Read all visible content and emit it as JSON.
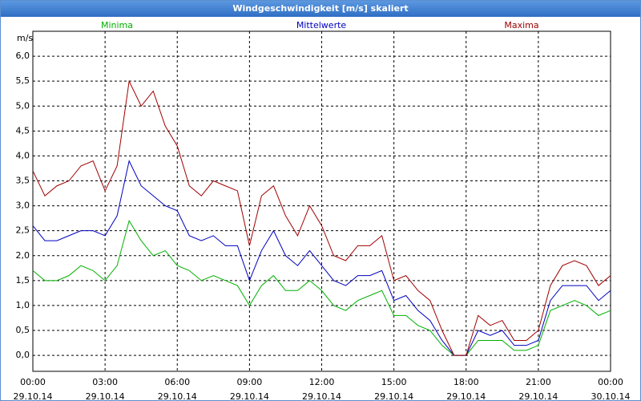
{
  "window_title": "Windgeschwindigkeit [m/s] skaliert",
  "chart_data": {
    "type": "line",
    "y_unit_label": "m/s",
    "x": [
      0,
      0.5,
      1,
      1.5,
      2,
      2.5,
      3,
      3.5,
      4,
      4.5,
      5,
      5.5,
      6,
      6.5,
      7,
      7.5,
      8,
      8.5,
      9,
      9.5,
      10,
      10.5,
      11,
      11.5,
      12,
      12.5,
      13,
      13.5,
      14,
      14.5,
      15,
      15.5,
      16,
      16.5,
      17,
      17.5,
      18,
      18.5,
      19,
      19.5,
      20,
      20.5,
      21,
      21.5,
      22,
      22.5,
      23,
      23.5,
      24
    ],
    "series": [
      {
        "name": "Minima",
        "color": "#00b000",
        "values": [
          1.7,
          1.5,
          1.5,
          1.6,
          1.8,
          1.7,
          1.5,
          1.8,
          2.7,
          2.3,
          2.0,
          2.1,
          1.8,
          1.7,
          1.5,
          1.6,
          1.5,
          1.4,
          1.0,
          1.4,
          1.6,
          1.3,
          1.3,
          1.5,
          1.3,
          1.0,
          0.9,
          1.1,
          1.2,
          1.3,
          0.8,
          0.8,
          0.6,
          0.5,
          0.2,
          0,
          0,
          0.3,
          0.3,
          0.3,
          0.1,
          0.1,
          0.2,
          0.9,
          1.0,
          1.1,
          1.0,
          0.8,
          0.9
        ]
      },
      {
        "name": "Mittelwerte",
        "color": "#0000c0",
        "values": [
          2.6,
          2.3,
          2.3,
          2.4,
          2.5,
          2.5,
          2.4,
          2.8,
          3.9,
          3.4,
          3.2,
          3.0,
          2.9,
          2.4,
          2.3,
          2.4,
          2.2,
          2.2,
          1.5,
          2.1,
          2.5,
          2.0,
          1.8,
          2.1,
          1.8,
          1.5,
          1.4,
          1.6,
          1.6,
          1.7,
          1.1,
          1.2,
          0.9,
          0.7,
          0.3,
          0,
          0,
          0.5,
          0.4,
          0.5,
          0.2,
          0.2,
          0.3,
          1.1,
          1.4,
          1.4,
          1.4,
          1.1,
          1.3
        ]
      },
      {
        "name": "Maxima",
        "color": "#a00000",
        "values": [
          3.7,
          3.2,
          3.4,
          3.5,
          3.8,
          3.9,
          3.3,
          3.8,
          5.5,
          5.0,
          5.3,
          4.6,
          4.2,
          3.4,
          3.2,
          3.5,
          3.4,
          3.3,
          2.2,
          3.2,
          3.4,
          2.8,
          2.4,
          3.0,
          2.6,
          2.0,
          1.9,
          2.2,
          2.2,
          2.4,
          1.5,
          1.6,
          1.3,
          1.1,
          0.5,
          0,
          0,
          0.8,
          0.6,
          0.7,
          0.3,
          0.3,
          0.5,
          1.4,
          1.8,
          1.9,
          1.8,
          1.4,
          1.6
        ]
      }
    ],
    "xlim": [
      0,
      24
    ],
    "xticks": [
      {
        "value": 0,
        "label": "00:00\n29.10.14"
      },
      {
        "value": 3,
        "label": "03:00\n29.10.14"
      },
      {
        "value": 6,
        "label": "06:00\n29.10.14"
      },
      {
        "value": 9,
        "label": "09:00\n29.10.14"
      },
      {
        "value": 12,
        "label": "12:00\n29.10.14"
      },
      {
        "value": 15,
        "label": "15:00\n29.10.14"
      },
      {
        "value": 18,
        "label": "18:00\n29.10.14"
      },
      {
        "value": 21,
        "label": "21:00\n29.10.14"
      },
      {
        "value": 24,
        "label": "00:00\n30.10.14"
      }
    ],
    "ylim": [
      -0.32,
      6.5
    ],
    "yticks": [
      {
        "value": 0,
        "label": "0,0"
      },
      {
        "value": 0.5,
        "label": "0,5"
      },
      {
        "value": 1,
        "label": "1,0"
      },
      {
        "value": 1.5,
        "label": "1,5"
      },
      {
        "value": 2,
        "label": "2,0"
      },
      {
        "value": 2.5,
        "label": "2,5"
      },
      {
        "value": 3,
        "label": "3,0"
      },
      {
        "value": 3.5,
        "label": "3,5"
      },
      {
        "value": 4,
        "label": "4,0"
      },
      {
        "value": 4.5,
        "label": "4,5"
      },
      {
        "value": 5,
        "label": "5,0"
      },
      {
        "value": 5.5,
        "label": "5,5"
      },
      {
        "value": 6,
        "label": "6,0"
      }
    ],
    "grid": true
  }
}
